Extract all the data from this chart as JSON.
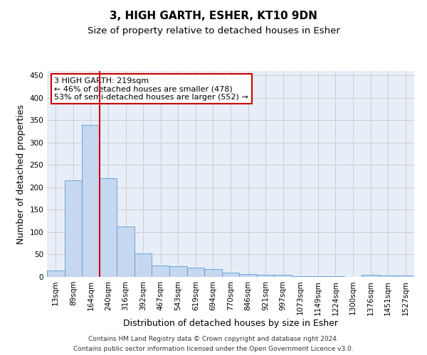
{
  "title": "3, HIGH GARTH, ESHER, KT10 9DN",
  "subtitle": "Size of property relative to detached houses in Esher",
  "xlabel": "Distribution of detached houses by size in Esher",
  "ylabel": "Number of detached properties",
  "footnote1": "Contains HM Land Registry data © Crown copyright and database right 2024.",
  "footnote2": "Contains public sector information licensed under the Open Government Licence v3.0.",
  "categories": [
    "13sqm",
    "89sqm",
    "164sqm",
    "240sqm",
    "316sqm",
    "392sqm",
    "467sqm",
    "543sqm",
    "619sqm",
    "694sqm",
    "770sqm",
    "846sqm",
    "921sqm",
    "997sqm",
    "1073sqm",
    "1149sqm",
    "1224sqm",
    "1300sqm",
    "1376sqm",
    "1451sqm",
    "1527sqm"
  ],
  "values": [
    15,
    215,
    340,
    220,
    112,
    53,
    26,
    24,
    20,
    18,
    9,
    6,
    5,
    4,
    1,
    1,
    1,
    0,
    4,
    3,
    3
  ],
  "bar_color": "#c5d8f0",
  "bar_edge_color": "#5b9bd5",
  "vline_color": "#cc0000",
  "annotation_text": "3 HIGH GARTH: 219sqm\n← 46% of detached houses are smaller (478)\n53% of semi-detached houses are larger (552) →",
  "annotation_box_color": "white",
  "annotation_box_edge": "#cc0000",
  "ylim": [
    0,
    460
  ],
  "yticks": [
    0,
    50,
    100,
    150,
    200,
    250,
    300,
    350,
    400,
    450
  ],
  "grid_color": "#c8c8c8",
  "background_color": "#e8eef8",
  "title_fontsize": 11,
  "subtitle_fontsize": 9.5,
  "axis_label_fontsize": 9,
  "tick_fontsize": 7.5,
  "footnote_fontsize": 6.5
}
